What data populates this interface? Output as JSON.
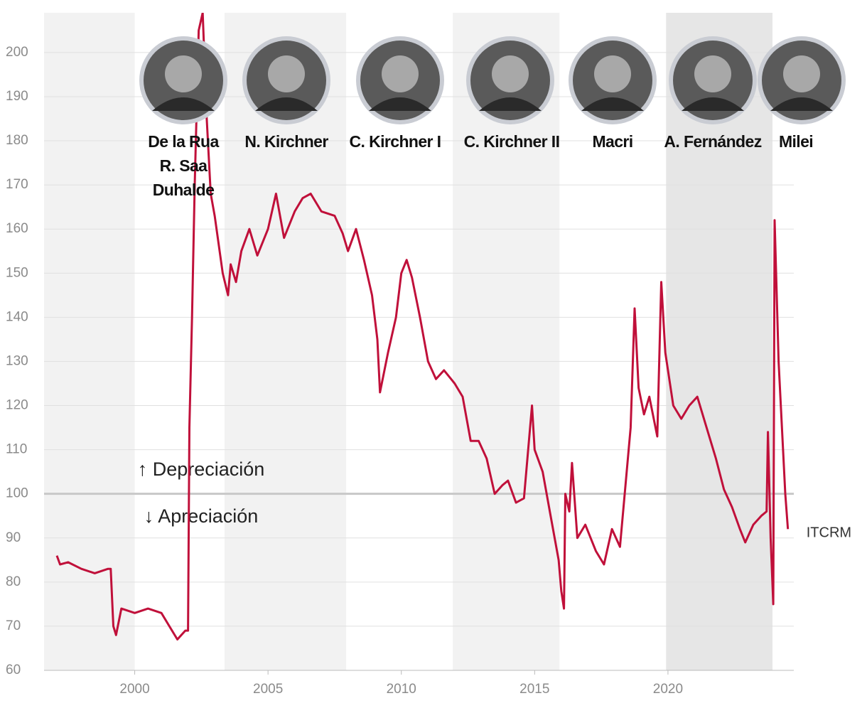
{
  "chart_data": {
    "type": "line",
    "xlim": [
      1996.6,
      2024.72
    ],
    "ylim": [
      60,
      209
    ],
    "xticks": [
      2000,
      2005,
      2010,
      2015,
      2020
    ],
    "yticks": [
      60,
      70,
      80,
      90,
      100,
      110,
      120,
      130,
      140,
      150,
      160,
      170,
      180,
      190,
      200
    ],
    "grid": true,
    "reference_line": 100,
    "depreciation_label": "↑ Depreciación",
    "appreciation_label": "↓ Apreciación",
    "shaded_periods": [
      {
        "range": [
          1996.6,
          2000.0
        ],
        "color": "#f2f2f2"
      },
      {
        "range": [
          2003.37,
          2007.93
        ],
        "color": "#f2f2f2"
      },
      {
        "range": [
          2011.93,
          2015.93
        ],
        "color": "#f2f2f2"
      },
      {
        "range": [
          2019.93,
          2023.92
        ],
        "color": "#e6e6e6"
      }
    ],
    "presidents": [
      [
        "De la Rua",
        "R. Saa",
        "Duhalde"
      ],
      [
        "N. Kirchner"
      ],
      [
        "C. Kirchner I"
      ],
      [
        "C. Kirchner II"
      ],
      [
        "Macri"
      ],
      [
        "A. Fernández"
      ],
      [
        "Milei"
      ]
    ],
    "x": [
      1997.08,
      1997.2,
      1997.5,
      1998.0,
      1998.5,
      1999.0,
      1999.1,
      1999.2,
      1999.3,
      1999.5,
      2000.0,
      2000.5,
      2001.0,
      2001.3,
      2001.6,
      2001.9,
      2002.0,
      2002.05,
      2002.15,
      2002.25,
      2002.4,
      2002.55,
      2002.7,
      2002.85,
      2003.0,
      2003.3,
      2003.5,
      2003.6,
      2003.8,
      2004.0,
      2004.3,
      2004.6,
      2005.0,
      2005.3,
      2005.6,
      2006.0,
      2006.3,
      2006.6,
      2007.0,
      2007.5,
      2007.8,
      2008.0,
      2008.3,
      2008.6,
      2008.9,
      2009.1,
      2009.2,
      2009.5,
      2009.8,
      2010.0,
      2010.2,
      2010.4,
      2010.7,
      2011.0,
      2011.3,
      2011.6,
      2012.0,
      2012.3,
      2012.6,
      2012.9,
      2013.2,
      2013.5,
      2013.8,
      2014.0,
      2014.3,
      2014.6,
      2014.9,
      2015.0,
      2015.3,
      2015.6,
      2015.9,
      2016.0,
      2016.1,
      2016.15,
      2016.3,
      2016.4,
      2016.6,
      2016.9,
      2017.3,
      2017.6,
      2017.9,
      2018.2,
      2018.6,
      2018.75,
      2018.9,
      2019.1,
      2019.3,
      2019.6,
      2019.75,
      2019.9,
      2020.2,
      2020.5,
      2020.8,
      2021.1,
      2021.4,
      2021.8,
      2022.1,
      2022.4,
      2022.7,
      2022.9,
      2023.2,
      2023.5,
      2023.7,
      2023.75,
      2023.85,
      2023.95,
      2024.0,
      2024.15,
      2024.4,
      2024.5
    ],
    "series": [
      {
        "name": "ITCRM",
        "color": "#c0103a",
        "values": [
          86,
          84,
          84.5,
          83,
          82,
          83,
          83,
          70,
          68,
          74,
          73,
          74,
          73,
          70,
          67,
          69,
          69,
          115,
          140,
          170,
          205,
          209,
          185,
          168,
          163,
          150,
          145,
          152,
          148,
          155,
          160,
          154,
          160,
          168,
          158,
          164,
          167,
          168,
          164,
          163,
          159,
          155,
          160,
          153,
          145,
          135,
          123,
          132,
          140,
          150,
          153,
          149,
          140,
          130,
          126,
          128,
          125,
          122,
          112,
          112,
          108,
          100,
          102,
          103,
          98,
          99,
          120,
          110,
          105,
          95,
          85,
          78,
          74,
          100,
          96,
          107,
          90,
          93,
          87,
          84,
          92,
          88,
          115,
          142,
          124,
          118,
          122,
          113,
          148,
          132,
          120,
          117,
          120,
          122,
          116,
          108,
          101,
          97,
          92,
          89,
          93,
          95,
          96,
          114,
          90,
          75,
          162,
          130,
          100,
          92
        ]
      }
    ]
  }
}
